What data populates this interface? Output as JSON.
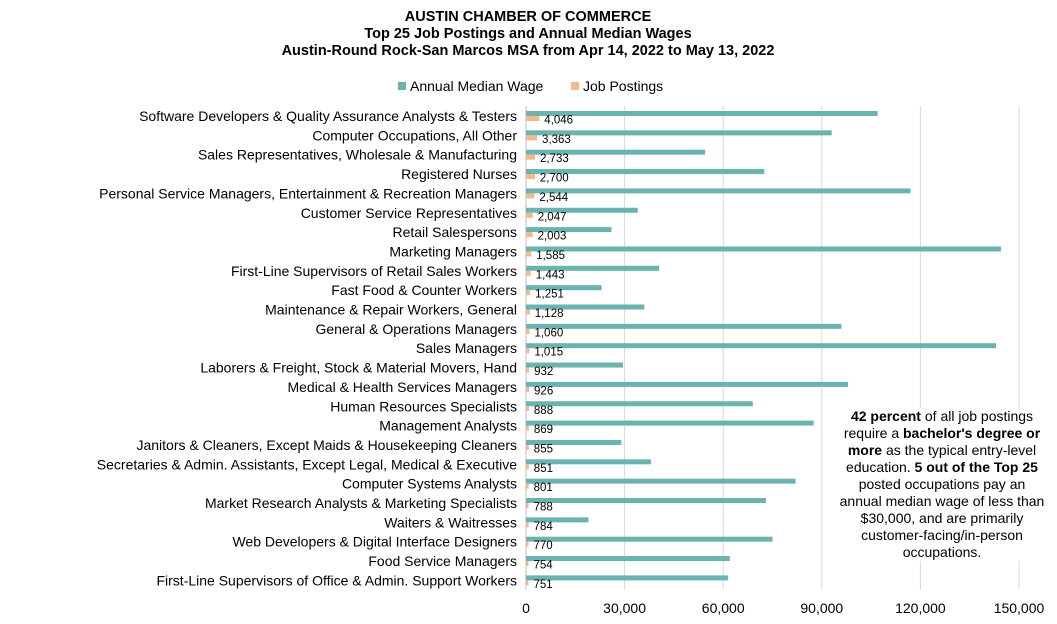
{
  "chart_data": {
    "type": "bar",
    "orientation": "horizontal",
    "title": [
      "AUSTIN CHAMBER OF COMMERCE",
      "Top 25 Job Postings and Annual Median Wages",
      "Austin-Round Rock-San Marcos MSA from Apr 14, 2022 to May 13, 2022"
    ],
    "legend": {
      "position": "top",
      "entries": [
        "Annual Median Wage",
        "Job Postings"
      ]
    },
    "xlim": [
      0,
      150000
    ],
    "xticks": [
      "0",
      "30,000",
      "60,000",
      "90,000",
      "120,000",
      "150,000"
    ],
    "xtick_values": [
      0,
      30000,
      60000,
      90000,
      120000,
      150000
    ],
    "grid": true,
    "categories": [
      "Software Developers & Quality Assurance Analysts & Testers",
      "Computer Occupations, All Other",
      "Sales Representatives, Wholesale & Manufacturing",
      "Registered Nurses",
      "Personal Service Managers, Entertainment & Recreation Managers",
      "Customer Service Representatives",
      "Retail Salespersons",
      "Marketing Managers",
      "First-Line Supervisors of Retail Sales Workers",
      "Fast Food & Counter Workers",
      "Maintenance & Repair Workers, General",
      "General & Operations Managers",
      "Sales Managers",
      "Laborers & Freight, Stock & Material Movers, Hand",
      "Medical & Health Services Managers",
      "Human Resources Specialists",
      "Management Analysts",
      "Janitors & Cleaners, Except Maids & Housekeeping Cleaners",
      "Secretaries & Admin. Assistants, Except Legal, Medical & Executive",
      "Computer Systems Analysts",
      "Market Research Analysts & Marketing Specialists",
      "Waiters & Waitresses",
      "Web Developers & Digital Interface Designers",
      "Food Service Managers",
      "First-Line Supervisors of Office & Admin. Support Workers"
    ],
    "series": [
      {
        "name": "Annual Median Wage",
        "color": "#6BB3B0",
        "values": [
          107000,
          93000,
          54500,
          72500,
          117000,
          34000,
          26000,
          144500,
          40500,
          23000,
          36000,
          96000,
          143000,
          29500,
          98000,
          69000,
          87500,
          29000,
          38000,
          82000,
          73000,
          19000,
          75000,
          62000,
          61500
        ]
      },
      {
        "name": "Job Postings",
        "color": "#F2B98A",
        "values": [
          4046,
          3363,
          2733,
          2700,
          2544,
          2047,
          2003,
          1585,
          1443,
          1251,
          1128,
          1060,
          1015,
          932,
          926,
          888,
          869,
          855,
          851,
          801,
          788,
          784,
          770,
          754,
          751
        ],
        "labels": [
          "4,046",
          "3,363",
          "2,733",
          "2,700",
          "2,544",
          "2,047",
          "2,003",
          "1,585",
          "1,443",
          "1,251",
          "1,128",
          "1,060",
          "1,015",
          "932",
          "926",
          "888",
          "869",
          "855",
          "851",
          "801",
          "788",
          "784",
          "770",
          "754",
          "751"
        ]
      }
    ]
  },
  "annotation": {
    "line1_bold": "42 percent",
    "line1_rest": " of all job postings require a ",
    "line2_bold": "bachelor's degree or more",
    "line2_rest": " as the typical entry-level education. ",
    "line3_bold": "5 out of the Top 25",
    "line3_rest": " posted occupations pay an annual median wage of less than $30,000, and are primarily customer-facing/in-person occupations."
  }
}
